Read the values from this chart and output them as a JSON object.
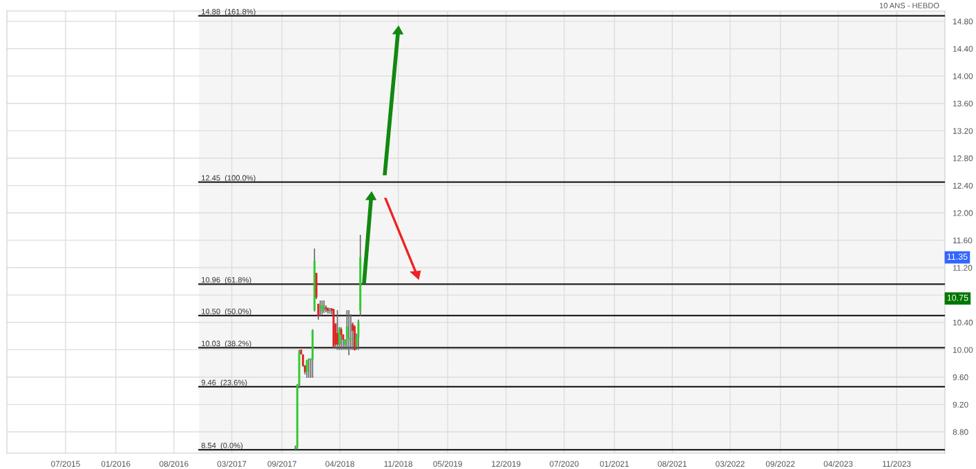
{
  "chart_data": {
    "type": "candlestick",
    "annotations": [
      "10 ANS - HEBDO",
      {
        "text": "11.35",
        "x": "2024-04-26",
        "y": 11.35
      },
      {
        "text": "10.75",
        "x": "2024-04-26",
        "y": 10.75
      }
    ],
    "x": [
      "2017-10-20",
      "2017-10-27",
      "2017-11-03",
      "2017-11-10",
      "2017-11-17",
      "2017-11-24",
      "2017-12-01",
      "2017-12-08",
      "2017-12-15",
      "2017-12-22",
      "2017-12-29",
      "2018-01-05",
      "2018-01-12",
      "2018-01-19",
      "2018-01-26",
      "2018-02-02",
      "2018-02-09",
      "2018-02-16",
      "2018-02-23",
      "2018-03-02",
      "2018-03-09",
      "2018-03-16",
      "2018-03-23",
      "2018-03-30",
      "2018-04-06",
      "2018-04-13",
      "2018-04-20",
      "2018-04-27",
      "2018-05-04",
      "2018-05-11",
      "2018-05-18",
      "2018-05-25",
      "2018-06-01",
      "2018-06-08",
      "2018-06-15"
    ],
    "ohlc": [
      [
        8.55,
        8.6,
        8.54,
        8.57
      ],
      [
        8.58,
        9.5,
        8.54,
        9.48
      ],
      [
        9.48,
        10.0,
        9.44,
        9.97
      ],
      [
        10.0,
        10.0,
        9.93,
        9.94
      ],
      [
        9.93,
        9.93,
        9.75,
        9.77
      ],
      [
        9.77,
        9.77,
        9.64,
        9.68
      ],
      [
        9.68,
        9.85,
        9.59,
        9.85
      ],
      [
        9.85,
        9.87,
        9.59,
        9.87
      ],
      [
        9.86,
        9.87,
        9.59,
        9.87
      ],
      [
        9.86,
        10.3,
        9.59,
        10.28
      ],
      [
        10.58,
        11.48,
        10.56,
        11.3
      ],
      [
        11.12,
        11.12,
        10.74,
        10.77
      ],
      [
        10.67,
        10.67,
        10.44,
        10.49
      ],
      [
        10.62,
        10.72,
        10.5,
        10.62
      ],
      [
        10.56,
        10.72,
        10.52,
        10.65
      ],
      [
        10.62,
        10.72,
        10.54,
        10.62
      ],
      [
        10.62,
        10.65,
        10.55,
        10.59
      ],
      [
        10.6,
        10.62,
        10.53,
        10.57
      ],
      [
        10.6,
        10.61,
        10.53,
        10.6
      ],
      [
        10.6,
        10.61,
        10.52,
        10.57
      ],
      [
        10.59,
        10.6,
        10.03,
        10.05
      ],
      [
        10.38,
        10.38,
        10.02,
        10.08
      ],
      [
        10.24,
        10.58,
        10.0,
        10.08
      ],
      [
        10.08,
        10.33,
        10.0,
        10.31
      ],
      [
        10.3,
        10.33,
        10.0,
        10.22
      ],
      [
        10.22,
        10.22,
        10.0,
        10.15
      ],
      [
        10.07,
        10.15,
        10.0,
        10.15
      ],
      [
        10.17,
        10.58,
        10.0,
        10.34
      ],
      [
        10.16,
        10.58,
        9.92,
        10.17
      ],
      [
        10.15,
        10.52,
        10.0,
        10.17
      ],
      [
        10.37,
        10.4,
        10.0,
        10.28
      ],
      [
        10.34,
        10.36,
        9.99,
        10.0
      ],
      [
        10.05,
        10.24,
        10.0,
        10.2
      ],
      [
        10.18,
        10.44,
        10.0,
        10.41
      ],
      [
        10.57,
        11.68,
        10.49,
        11.35
      ]
    ],
    "xlim": [
      "2014-11-28",
      "2024-04-26"
    ],
    "xticks": [
      {
        "value": "2015-07-01",
        "label": "07/2015"
      },
      {
        "value": "2016-01-01",
        "label": "01/2016"
      },
      {
        "value": "2016-08-01",
        "label": "08/2016"
      },
      {
        "value": "2017-03-01",
        "label": "03/2017"
      },
      {
        "value": "2017-09-01",
        "label": "09/2017"
      },
      {
        "value": "2018-04-01",
        "label": "04/2018"
      },
      {
        "value": "2018-11-01",
        "label": "11/2018"
      },
      {
        "value": "2019-05-01",
        "label": "05/2019"
      },
      {
        "value": "2019-12-01",
        "label": "12/2019"
      },
      {
        "value": "2020-07-01",
        "label": "07/2020"
      },
      {
        "value": "2021-01-01",
        "label": "01/2021"
      },
      {
        "value": "2021-08-01",
        "label": "08/2021"
      },
      {
        "value": "2022-03-01",
        "label": "03/2022"
      },
      {
        "value": "2022-09-01",
        "label": "09/2022"
      },
      {
        "value": "2023-04-01",
        "label": "04/2023"
      },
      {
        "value": "2023-11-01",
        "label": "11/2023"
      }
    ],
    "ylim": [
      8.49,
      14.95
    ],
    "yticks": [
      {
        "value": 8.8,
        "label": "8.80"
      },
      {
        "value": 9.2,
        "label": "9.20"
      },
      {
        "value": 9.6,
        "label": "9.60"
      },
      {
        "value": 10.0,
        "label": "10.00"
      },
      {
        "value": 10.4,
        "label": "10.40"
      },
      {
        "value": 10.8,
        "label": null
      },
      {
        "value": 11.2,
        "label": "11.20"
      },
      {
        "value": 11.6,
        "label": "11.60"
      },
      {
        "value": 12.0,
        "label": "12.00"
      },
      {
        "value": 12.4,
        "label": "12.40"
      },
      {
        "value": 12.8,
        "label": "12.80"
      },
      {
        "value": 13.2,
        "label": "13.20"
      },
      {
        "value": 13.6,
        "label": "13.60"
      },
      {
        "value": 14.0,
        "label": "14.00"
      },
      {
        "value": 14.4,
        "label": "14.40"
      },
      {
        "value": 14.8,
        "label": "14.80"
      }
    ],
    "grid": true,
    "bands": [
      {
        "axis": "x",
        "from": "2016-11-01",
        "to": "2024-04-26",
        "color": "#f5f5f5"
      }
    ],
    "ref_lines": [
      {
        "axis": "y",
        "value": 14.88,
        "label": "14.88  (161.8%)",
        "color": "#222222"
      },
      {
        "axis": "y",
        "value": 12.45,
        "label": "12.45  (100.0%)",
        "color": "#222222"
      },
      {
        "axis": "y",
        "value": 10.96,
        "label": "10.96  (61.8%)",
        "color": "#222222"
      },
      {
        "axis": "y",
        "value": 10.5,
        "label": "10.50  (50.0%)",
        "color": "#222222"
      },
      {
        "axis": "y",
        "value": 10.03,
        "label": "10.03  (38.2%)",
        "color": "#222222"
      },
      {
        "axis": "y",
        "value": 9.46,
        "label": "9.46  (23.6%)",
        "color": "#222222"
      },
      {
        "axis": "y",
        "value": 8.54,
        "label": "8.54  (0.0%)",
        "color": "#222222"
      }
    ]
  }
}
